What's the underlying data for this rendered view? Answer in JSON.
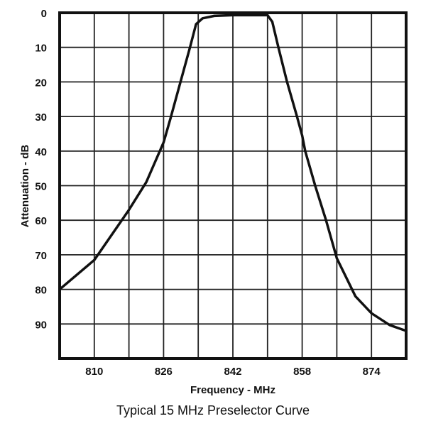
{
  "chart_data": {
    "type": "line",
    "title": "",
    "caption": "Typical 15 MHz Preselector Curve",
    "xlabel": "Frequency - MHz",
    "ylabel": "Attenuation - dB",
    "xlim": [
      802,
      882
    ],
    "ylim": [
      0,
      100
    ],
    "y_inverted": true,
    "grid": true,
    "x_grid_step": 8,
    "y_grid_step": 10,
    "x_ticks": [
      810,
      826,
      842,
      858,
      874
    ],
    "y_ticks": [
      0,
      10,
      20,
      30,
      40,
      50,
      60,
      70,
      80,
      90
    ],
    "line_color": "#111111",
    "series": [
      {
        "x": [
          802,
          810,
          818,
          822,
          826,
          827.6,
          829.9,
          832.1,
          833.5,
          835,
          837.7,
          842,
          850,
          851.1,
          852.5,
          854.5,
          856.8,
          858,
          858.7,
          861,
          863.5,
          866,
          870.3,
          874,
          878.2,
          882
        ],
        "y": [
          80,
          71.5,
          57,
          49,
          37.5,
          30.5,
          20,
          10,
          3.3,
          1.6,
          0.9,
          0.7,
          0.7,
          2.6,
          10,
          20,
          30,
          35.5,
          40,
          50,
          60,
          71,
          82,
          86.9,
          90.3,
          92
        ]
      }
    ]
  }
}
